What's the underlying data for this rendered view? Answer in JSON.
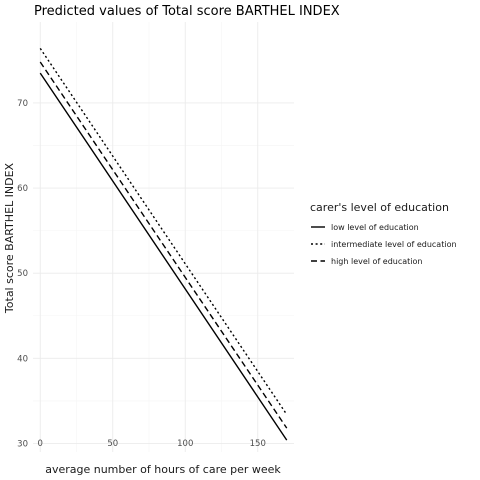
{
  "chart_data": {
    "type": "line",
    "title": "Predicted values of Total score BARTHEL INDEX",
    "xlabel": "average number of hours of care per week",
    "ylabel": "Total score BARTHEL INDEX",
    "xlim": [
      -5,
      175
    ],
    "ylim": [
      29,
      79.5
    ],
    "x_ticks": [
      0,
      50,
      100,
      150
    ],
    "y_ticks": [
      30,
      40,
      50,
      60,
      70
    ],
    "grid": true,
    "legend": {
      "title": "carer's level of education",
      "position": "right"
    },
    "series": [
      {
        "name": "low level of education",
        "dash": "solid",
        "x": [
          0,
          170
        ],
        "y": [
          73.5,
          30.4
        ]
      },
      {
        "name": "intermediate level of education",
        "dash": "dotted",
        "x": [
          0,
          170
        ],
        "y": [
          76.4,
          33.4
        ]
      },
      {
        "name": "high level of education",
        "dash": "dashed",
        "x": [
          0,
          170
        ],
        "y": [
          74.8,
          31.8
        ]
      }
    ]
  }
}
